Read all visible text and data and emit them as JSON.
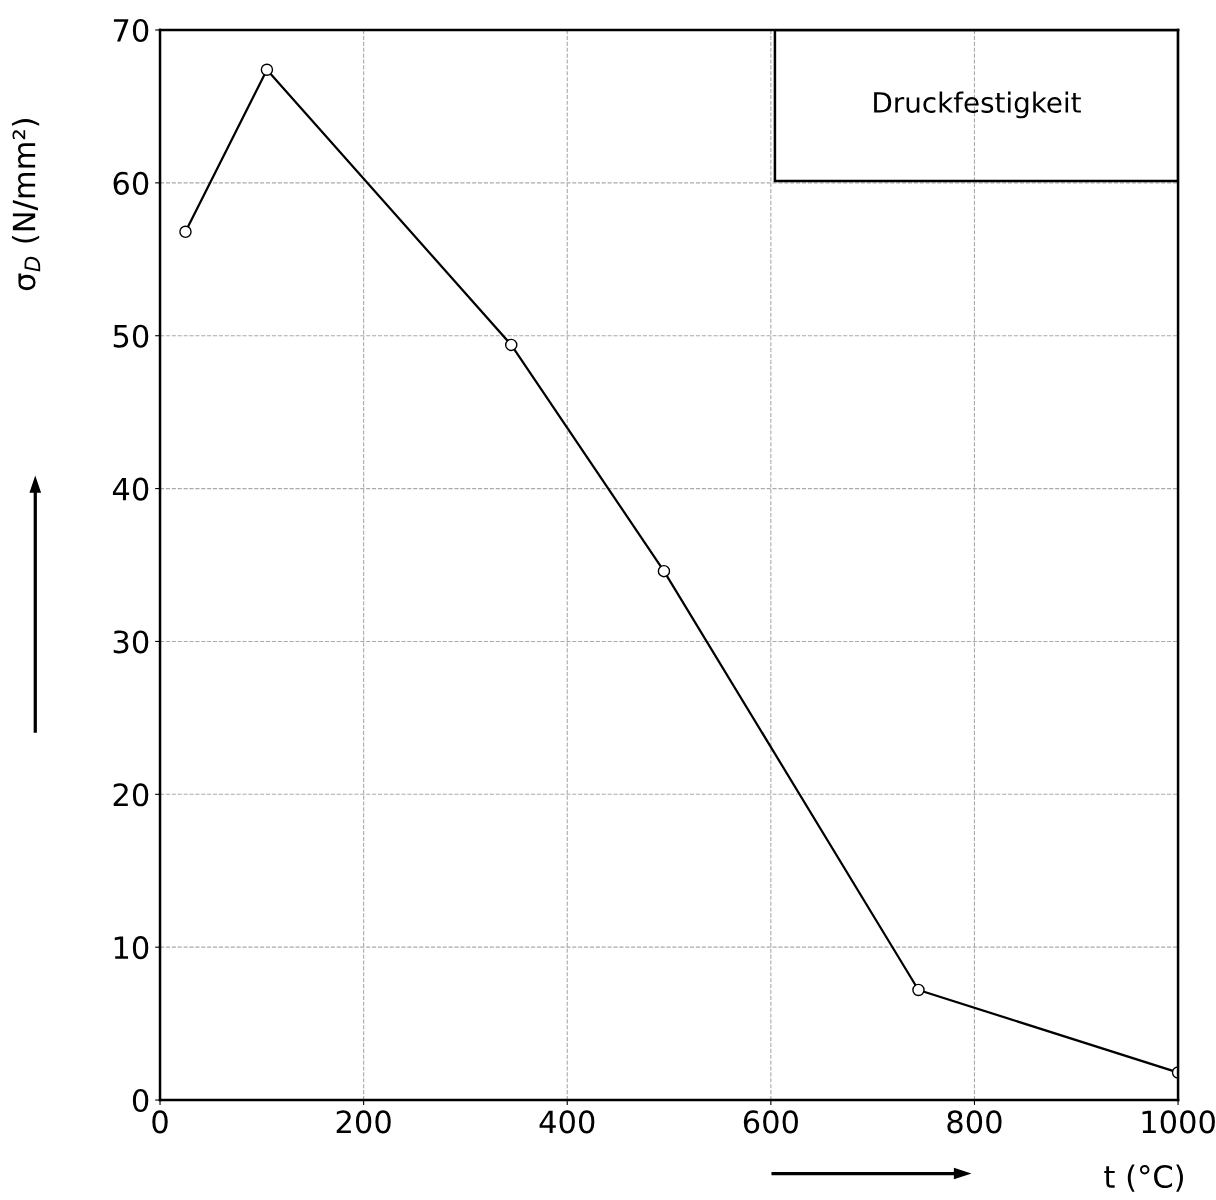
{
  "chart_data": {
    "type": "line",
    "title": "Druckfestigkeit",
    "xlabel": "t (°C)",
    "ylabel": "σ$_{D}$ (N/mm²)",
    "x": [
      25,
      105,
      345,
      495,
      745,
      1000
    ],
    "series": [
      {
        "color": "#000000",
        "values": [
          56.8,
          67.4,
          49.4,
          34.6,
          7.2,
          1.8
        ]
      }
    ],
    "xlim": [
      0,
      1000
    ],
    "ylim": [
      0,
      70
    ],
    "xticks": [
      0,
      200,
      400,
      600,
      800,
      1000
    ],
    "yticks": [
      0,
      10,
      20,
      30,
      40,
      50,
      60,
      70
    ],
    "grid": true,
    "marker": "circle",
    "line_style": "solid"
  }
}
